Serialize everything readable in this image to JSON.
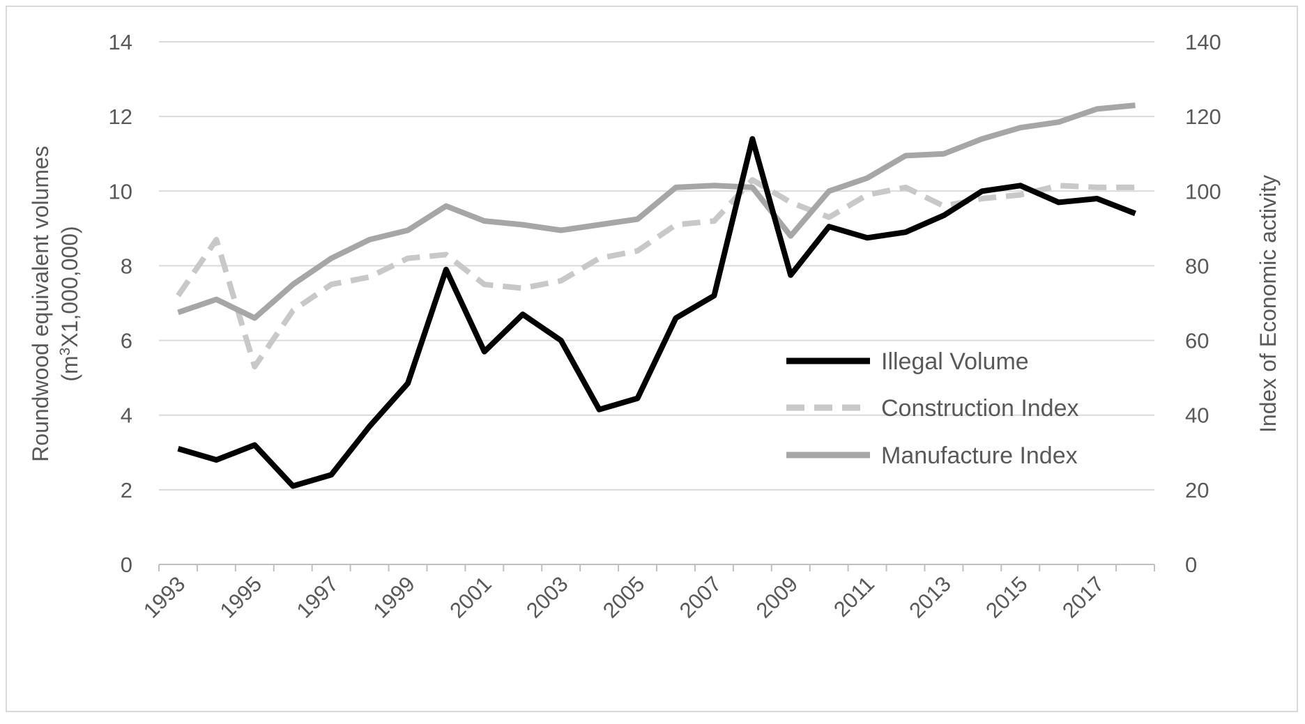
{
  "chart_data": {
    "type": "line",
    "title": "",
    "x": [
      1993,
      1994,
      1995,
      1996,
      1997,
      1998,
      1999,
      2000,
      2001,
      2002,
      2003,
      2004,
      2005,
      2006,
      2007,
      2008,
      2009,
      2010,
      2011,
      2012,
      2013,
      2014,
      2015,
      2016,
      2017,
      2018
    ],
    "x_tick_labels": [
      "1993",
      "1995",
      "1997",
      "1999",
      "2001",
      "2003",
      "2005",
      "2007",
      "2009",
      "2011",
      "2013",
      "2015",
      "2017"
    ],
    "x_tick_values": [
      1993,
      1995,
      1997,
      1999,
      2001,
      2003,
      2005,
      2007,
      2009,
      2011,
      2013,
      2015,
      2017
    ],
    "ylabel_left_line1": "Roundwood equivalent volumes",
    "ylabel_left_line2_prefix": "(m",
    "ylabel_left_line2_sup": "3",
    "ylabel_left_line2_suffix": "X1,000,000)",
    "ylabel_right": "Index of Economic activity",
    "ylim_left": [
      0,
      14
    ],
    "ylim_right": [
      0,
      140
    ],
    "y_ticks_left": [
      "0",
      "2",
      "4",
      "6",
      "8",
      "10",
      "12",
      "14"
    ],
    "y_ticks_right": [
      "0",
      "20",
      "40",
      "60",
      "80",
      "100",
      "120",
      "140"
    ],
    "grid": true,
    "legend_position": "center-right",
    "series": [
      {
        "name": "Illegal Volume",
        "axis": "left",
        "style": "solid",
        "color": "#000000",
        "values": [
          3.1,
          2.8,
          3.2,
          2.1,
          2.4,
          3.7,
          4.85,
          7.9,
          5.7,
          6.7,
          6.0,
          4.15,
          4.45,
          6.6,
          7.2,
          11.4,
          7.75,
          9.05,
          8.75,
          8.9,
          9.35,
          10.0,
          10.15,
          9.7,
          9.8,
          9.4
        ]
      },
      {
        "name": "Construction Index",
        "axis": "right",
        "style": "dashed",
        "color": "#c8c8c8",
        "values": [
          72,
          87,
          53,
          68,
          75,
          77,
          82,
          83,
          75,
          74,
          76,
          82,
          84,
          91,
          92,
          103,
          97,
          93,
          99,
          101,
          96,
          98,
          99,
          101.5,
          101,
          101
        ]
      },
      {
        "name": "Manufacture Index",
        "axis": "right",
        "style": "solid",
        "color": "#a6a6a6",
        "values": [
          67.5,
          71,
          66,
          75,
          82,
          87,
          89.5,
          96,
          92,
          91,
          89.5,
          91,
          92.5,
          101,
          101.5,
          101,
          88,
          100,
          103.5,
          109.5,
          110,
          114,
          117,
          118.5,
          122,
          123
        ]
      }
    ]
  }
}
